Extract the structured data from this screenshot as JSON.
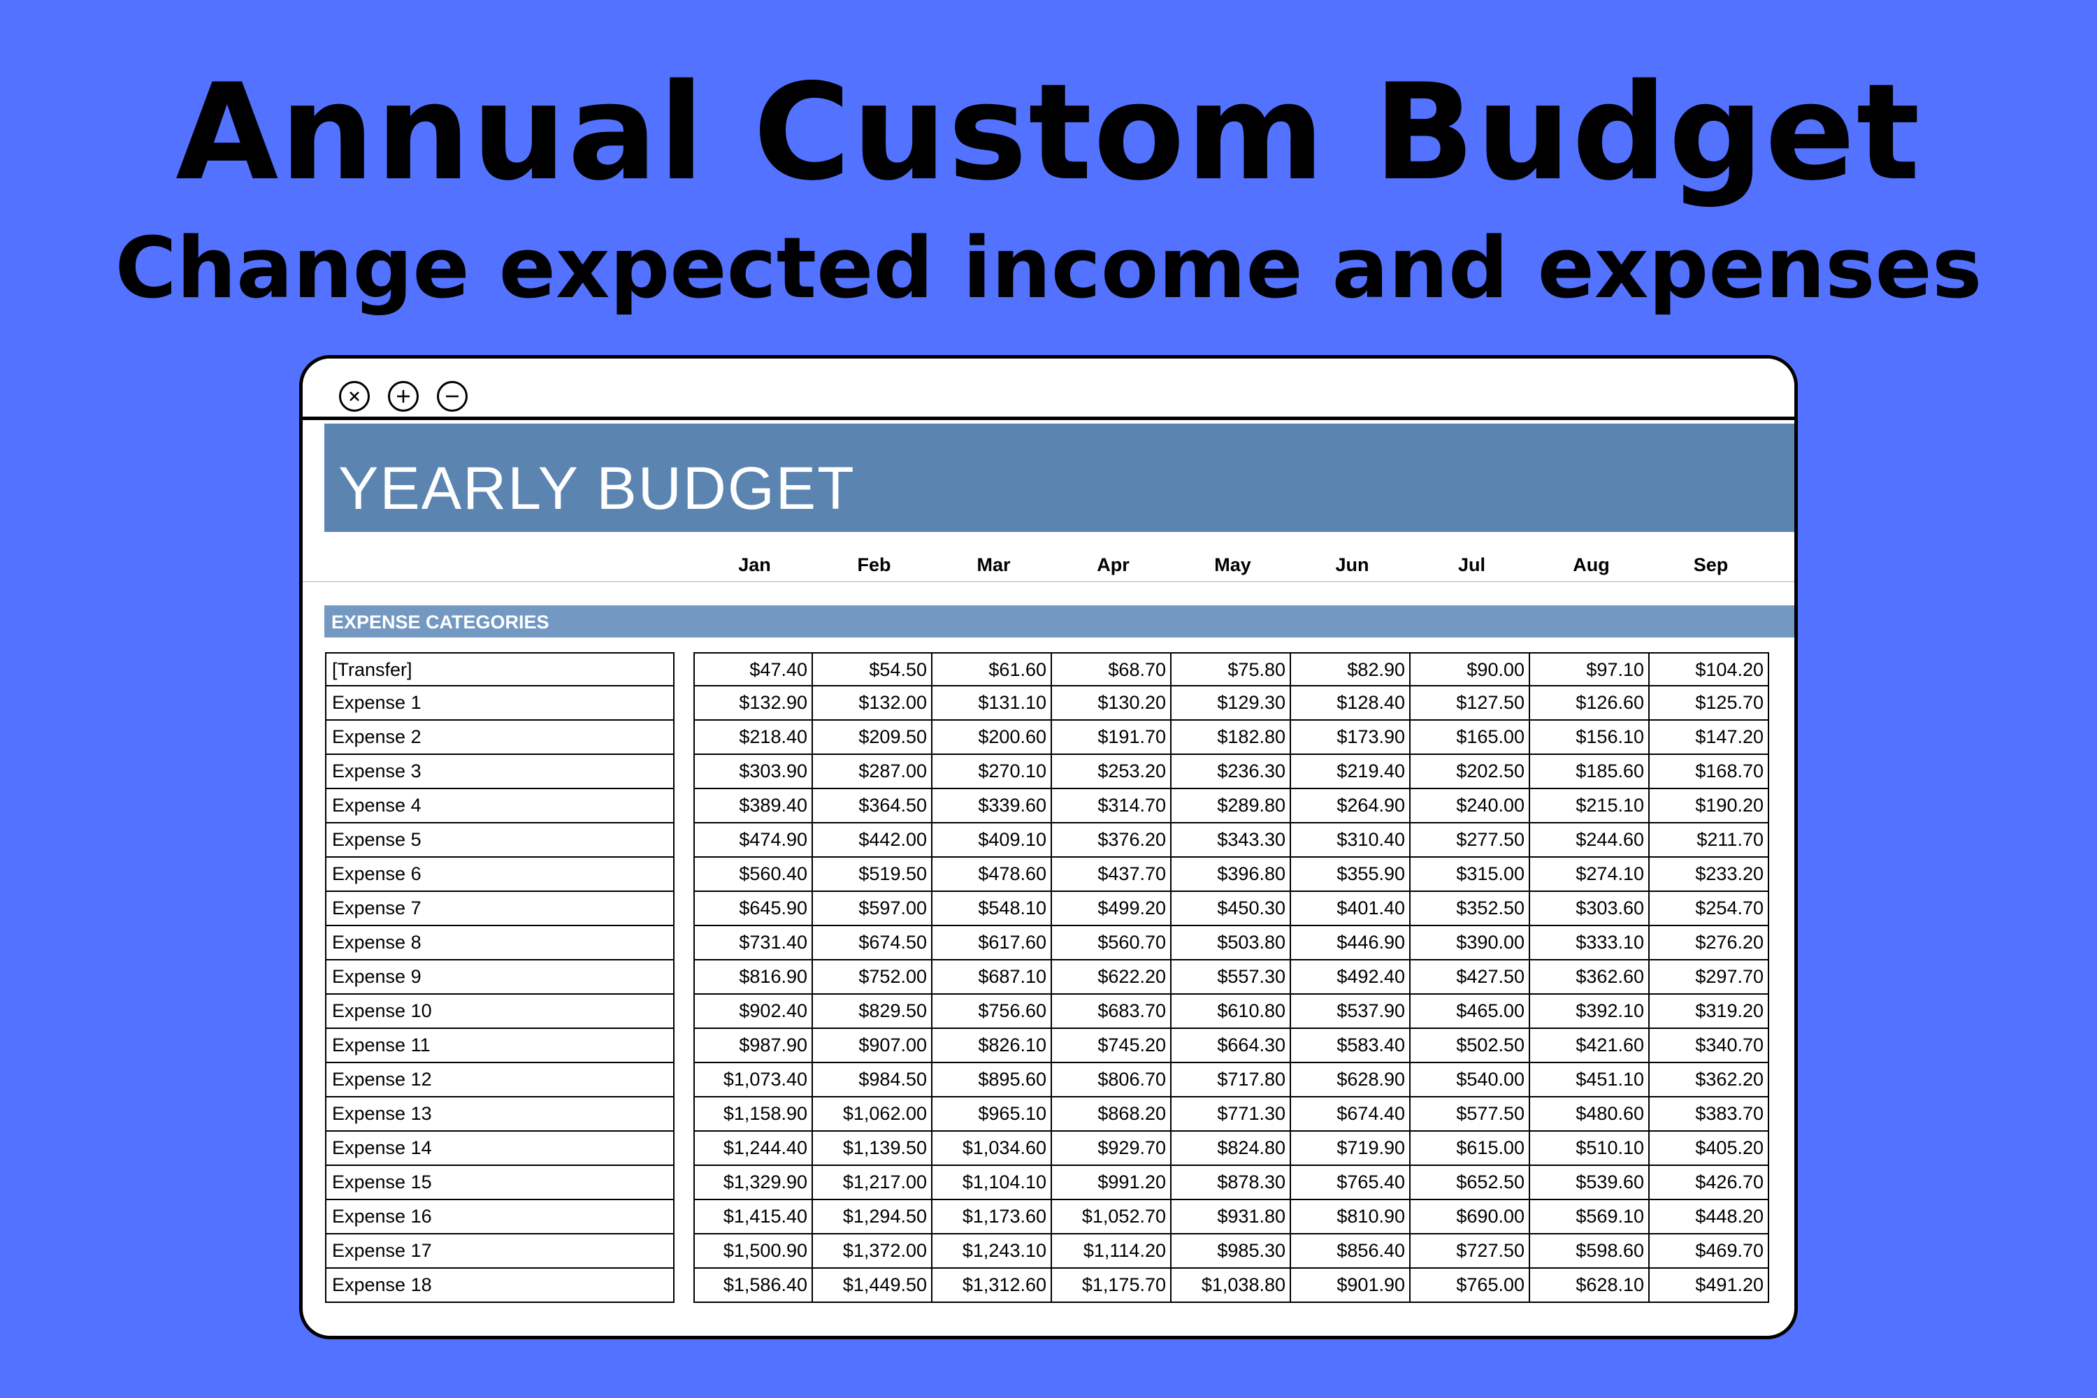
{
  "headline": "Annual Custom Budget",
  "subheadline": "Change expected income and expenses",
  "window": {
    "controls": [
      "close-icon",
      "plus-icon",
      "minus-icon"
    ]
  },
  "sheet": {
    "title": "YEARLY BUDGET",
    "months": [
      "Jan",
      "Feb",
      "Mar",
      "Apr",
      "May",
      "Jun",
      "Jul",
      "Aug",
      "Sep"
    ],
    "section_label": "EXPENSE CATEGORIES",
    "rows": [
      {
        "label": "[Transfer]",
        "values": [
          "$47.40",
          "$54.50",
          "$61.60",
          "$68.70",
          "$75.80",
          "$82.90",
          "$90.00",
          "$97.10",
          "$104.20"
        ]
      },
      {
        "label": "Expense 1",
        "values": [
          "$132.90",
          "$132.00",
          "$131.10",
          "$130.20",
          "$129.30",
          "$128.40",
          "$127.50",
          "$126.60",
          "$125.70"
        ]
      },
      {
        "label": "Expense 2",
        "values": [
          "$218.40",
          "$209.50",
          "$200.60",
          "$191.70",
          "$182.80",
          "$173.90",
          "$165.00",
          "$156.10",
          "$147.20"
        ]
      },
      {
        "label": "Expense 3",
        "values": [
          "$303.90",
          "$287.00",
          "$270.10",
          "$253.20",
          "$236.30",
          "$219.40",
          "$202.50",
          "$185.60",
          "$168.70"
        ]
      },
      {
        "label": "Expense 4",
        "values": [
          "$389.40",
          "$364.50",
          "$339.60",
          "$314.70",
          "$289.80",
          "$264.90",
          "$240.00",
          "$215.10",
          "$190.20"
        ]
      },
      {
        "label": "Expense 5",
        "values": [
          "$474.90",
          "$442.00",
          "$409.10",
          "$376.20",
          "$343.30",
          "$310.40",
          "$277.50",
          "$244.60",
          "$211.70"
        ]
      },
      {
        "label": "Expense 6",
        "values": [
          "$560.40",
          "$519.50",
          "$478.60",
          "$437.70",
          "$396.80",
          "$355.90",
          "$315.00",
          "$274.10",
          "$233.20"
        ]
      },
      {
        "label": "Expense 7",
        "values": [
          "$645.90",
          "$597.00",
          "$548.10",
          "$499.20",
          "$450.30",
          "$401.40",
          "$352.50",
          "$303.60",
          "$254.70"
        ]
      },
      {
        "label": "Expense 8",
        "values": [
          "$731.40",
          "$674.50",
          "$617.60",
          "$560.70",
          "$503.80",
          "$446.90",
          "$390.00",
          "$333.10",
          "$276.20"
        ]
      },
      {
        "label": "Expense 9",
        "values": [
          "$816.90",
          "$752.00",
          "$687.10",
          "$622.20",
          "$557.30",
          "$492.40",
          "$427.50",
          "$362.60",
          "$297.70"
        ]
      },
      {
        "label": "Expense 10",
        "values": [
          "$902.40",
          "$829.50",
          "$756.60",
          "$683.70",
          "$610.80",
          "$537.90",
          "$465.00",
          "$392.10",
          "$319.20"
        ]
      },
      {
        "label": "Expense 11",
        "values": [
          "$987.90",
          "$907.00",
          "$826.10",
          "$745.20",
          "$664.30",
          "$583.40",
          "$502.50",
          "$421.60",
          "$340.70"
        ]
      },
      {
        "label": "Expense 12",
        "values": [
          "$1,073.40",
          "$984.50",
          "$895.60",
          "$806.70",
          "$717.80",
          "$628.90",
          "$540.00",
          "$451.10",
          "$362.20"
        ]
      },
      {
        "label": "Expense 13",
        "values": [
          "$1,158.90",
          "$1,062.00",
          "$965.10",
          "$868.20",
          "$771.30",
          "$674.40",
          "$577.50",
          "$480.60",
          "$383.70"
        ]
      },
      {
        "label": "Expense 14",
        "values": [
          "$1,244.40",
          "$1,139.50",
          "$1,034.60",
          "$929.70",
          "$824.80",
          "$719.90",
          "$615.00",
          "$510.10",
          "$405.20"
        ]
      },
      {
        "label": "Expense 15",
        "values": [
          "$1,329.90",
          "$1,217.00",
          "$1,104.10",
          "$991.20",
          "$878.30",
          "$765.40",
          "$652.50",
          "$539.60",
          "$426.70"
        ]
      },
      {
        "label": "Expense 16",
        "values": [
          "$1,415.40",
          "$1,294.50",
          "$1,173.60",
          "$1,052.70",
          "$931.80",
          "$810.90",
          "$690.00",
          "$569.10",
          "$448.20"
        ]
      },
      {
        "label": "Expense 17",
        "values": [
          "$1,500.90",
          "$1,372.00",
          "$1,243.10",
          "$1,114.20",
          "$985.30",
          "$856.40",
          "$727.50",
          "$598.60",
          "$469.70"
        ]
      },
      {
        "label": "Expense 18",
        "values": [
          "$1,586.40",
          "$1,449.50",
          "$1,312.60",
          "$1,175.70",
          "$1,038.80",
          "$901.90",
          "$765.00",
          "$628.10",
          "$491.20"
        ]
      }
    ]
  },
  "colors": {
    "background": "#5372ff",
    "banner": "#5b84b1",
    "section_band": "#7399c3"
  }
}
